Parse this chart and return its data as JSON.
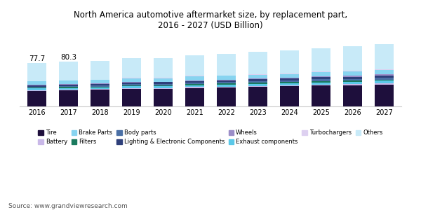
{
  "title": "North America automotive aftermarket size, by replacement part,\n2016 - 2027 (USD Billion)",
  "years": [
    2016,
    2017,
    2018,
    2019,
    2020,
    2021,
    2022,
    2023,
    2024,
    2025,
    2026,
    2027
  ],
  "annotations": {
    "2016": "77.7",
    "2017": "80.3"
  },
  "source": "Source: www.grandviewresearch.com",
  "segments": {
    "Tire": [
      28.0,
      29.0,
      29.5,
      31.0,
      31.5,
      33.0,
      34.0,
      35.0,
      36.0,
      37.0,
      38.0,
      39.0
    ],
    "Battery": [
      1.2,
      1.2,
      1.3,
      1.4,
      1.4,
      1.5,
      1.5,
      1.6,
      1.6,
      1.8,
      1.8,
      2.0
    ],
    "Brake Parts": [
      5.5,
      5.7,
      5.8,
      6.2,
      6.2,
      6.5,
      6.6,
      6.8,
      7.0,
      7.3,
      7.5,
      7.8
    ],
    "Filters": [
      1.5,
      1.5,
      1.6,
      1.7,
      1.7,
      1.8,
      1.8,
      2.0,
      2.0,
      2.2,
      2.2,
      2.4
    ],
    "Body parts": [
      2.0,
      2.0,
      2.1,
      2.3,
      2.3,
      2.5,
      2.5,
      2.7,
      2.7,
      3.0,
      3.0,
      3.3
    ],
    "Lighting & Electronic Components": [
      2.5,
      2.6,
      2.7,
      3.0,
      3.0,
      3.2,
      3.2,
      3.5,
      3.5,
      3.8,
      3.8,
      4.2
    ],
    "Wheels": [
      1.0,
      1.0,
      1.0,
      1.2,
      1.2,
      1.3,
      1.3,
      1.4,
      1.4,
      1.5,
      1.5,
      1.7
    ],
    "Exhaust components": [
      3.0,
      3.0,
      3.1,
      3.4,
      3.4,
      3.7,
      3.7,
      4.0,
      4.0,
      4.4,
      4.4,
      4.8
    ],
    "Turbochargers": [
      0.8,
      0.8,
      0.8,
      1.0,
      1.0,
      1.1,
      1.1,
      1.2,
      1.2,
      1.4,
      1.4,
      1.6
    ],
    "Others": [
      32.2,
      33.5,
      33.6,
      34.8,
      35.3,
      37.4,
      38.3,
      39.3,
      40.6,
      41.6,
      44.4,
      45.2
    ]
  },
  "colors": {
    "Tire": "#1e0f3c",
    "Battery": "#c9b8e8",
    "Brake Parts": "#87d4f0",
    "Filters": "#1a7a5e",
    "Body parts": "#4a6fa5",
    "Lighting & Electronic Components": "#2e3f7a",
    "Wheels": "#9b8dc8",
    "Exhaust components": "#5bc8e8",
    "Turbochargers": "#ddd0f0",
    "Others": "#c8eaf8"
  },
  "legend_order": [
    "Tire",
    "Battery",
    "Brake Parts",
    "Filters",
    "Body parts",
    "Lighting & Electronic Components",
    "Wheels",
    "Exhaust components",
    "Turbochargers",
    "Others"
  ],
  "seg_order": [
    "Tire",
    "Battery",
    "Exhaust components",
    "Filters",
    "Body parts",
    "Lighting & Electronic Components",
    "Wheels",
    "Brake Parts",
    "Turbochargers",
    "Others"
  ],
  "ylim": [
    0,
    130
  ],
  "bar_width": 0.6,
  "background_color": "#ffffff",
  "title_fontsize": 8.5,
  "tick_fontsize": 7,
  "source_fontsize": 6.5,
  "legend_fontsize": 6.0
}
